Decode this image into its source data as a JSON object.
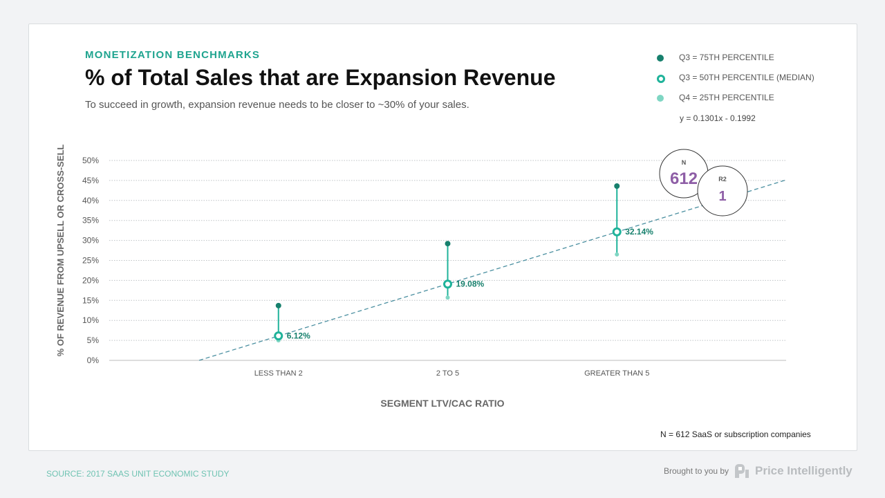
{
  "header": {
    "eyebrow": "MONETIZATION BENCHMARKS",
    "title": "% of Total Sales that are Expansion Revenue",
    "subtitle": "To succeed in growth, expansion revenue needs to be closer to ~30% of your sales."
  },
  "footer": {
    "note": "N = 612 SaaS or subscription companies",
    "source": "SOURCE: 2017 SAAS UNIT ECONOMIC STUDY",
    "brought_by": "Brought to you by",
    "brand": "Price Intelligently"
  },
  "colors": {
    "q75": "#17806d",
    "median": "#1fb39a",
    "q25": "#7fd6c3",
    "trend": "#4a8fa0",
    "accent": "#8e5ea6"
  },
  "chart_data": {
    "type": "scatter",
    "title": "% of Total Sales that are Expansion Revenue",
    "xlabel": "SEGMENT LTV/CAC RATIO",
    "ylabel": "% OF REVENUE FROM UPSELL OR CROSS-SELL",
    "categories": [
      "LESS THAN 2",
      "2 TO 5",
      "GREATER THAN 5"
    ],
    "category_x": [
      2,
      3,
      4
    ],
    "xlim": [
      1,
      5
    ],
    "ylim": [
      0,
      50
    ],
    "yticks": [
      0,
      5,
      10,
      15,
      20,
      25,
      30,
      35,
      40,
      45,
      50
    ],
    "ytick_labels": [
      "0%",
      "5%",
      "10%",
      "15%",
      "20%",
      "25%",
      "30%",
      "35%",
      "40%",
      "45%",
      "50%"
    ],
    "grid": true,
    "legend_position": "top-right",
    "series": [
      {
        "name": "Q3 = 75TH PERCENTILE",
        "values": [
          13.7,
          29.2,
          43.6
        ]
      },
      {
        "name": "Q3 = 50TH PERCENTILE (MEDIAN)",
        "values": [
          6.12,
          19.08,
          32.14
        ],
        "labels": [
          "6.12%",
          "19.08%",
          "32.14%"
        ]
      },
      {
        "name": "Q4 = 25TH PERCENTILE",
        "values": [
          5.0,
          15.7,
          26.5
        ]
      }
    ],
    "trendline": {
      "equation": "y = 0.1301x - 0.1992",
      "slope": 0.1301,
      "intercept": -0.1992
    },
    "stats": [
      {
        "label": "N",
        "value": "612"
      },
      {
        "label": "R2",
        "value": "1"
      }
    ]
  }
}
